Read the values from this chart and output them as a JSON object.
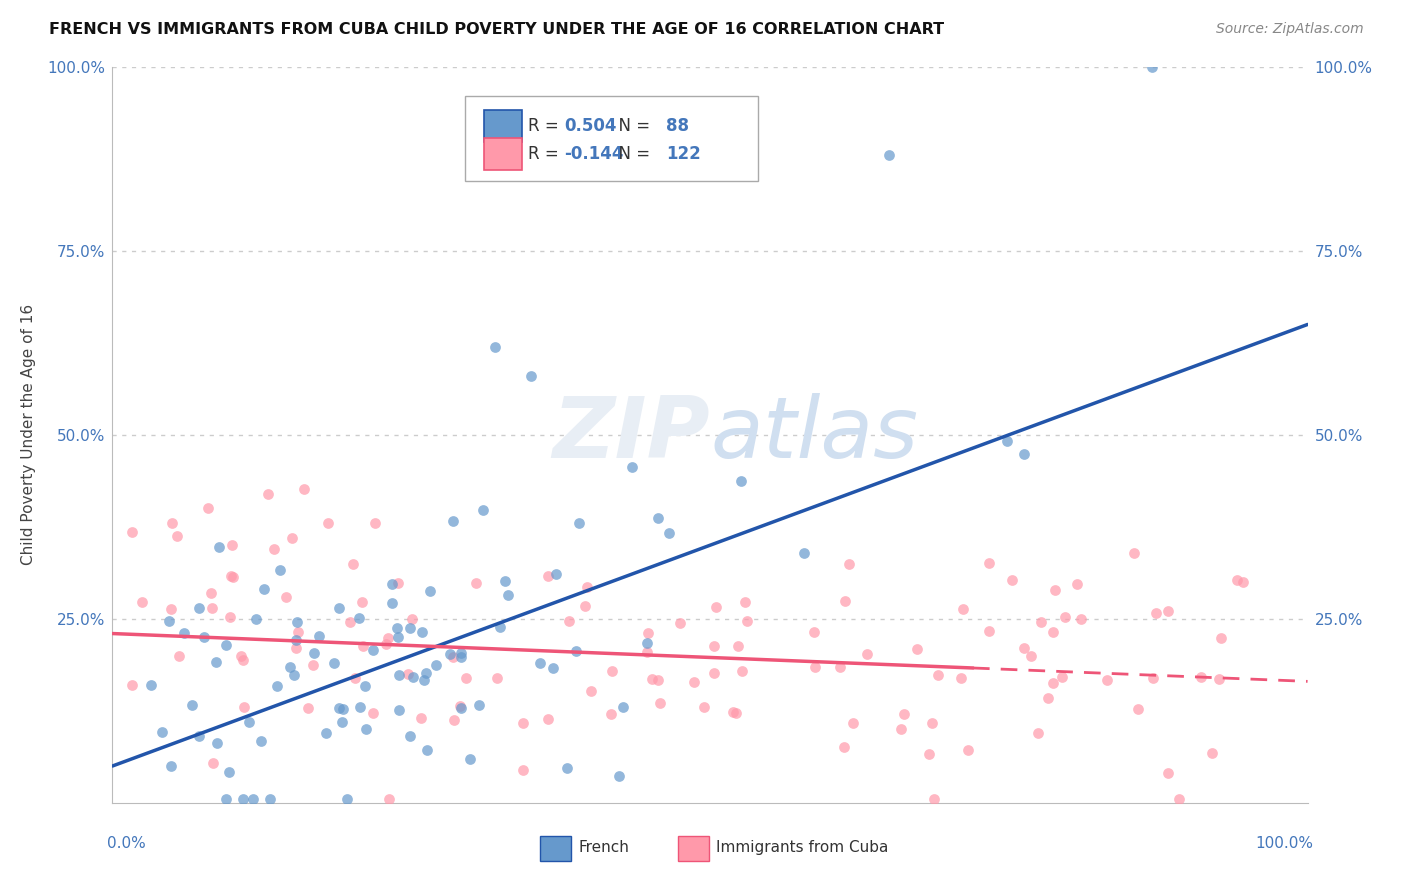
{
  "title": "FRENCH VS IMMIGRANTS FROM CUBA CHILD POVERTY UNDER THE AGE OF 16 CORRELATION CHART",
  "source": "Source: ZipAtlas.com",
  "ylabel": "Child Poverty Under the Age of 16",
  "french_R": 0.504,
  "french_N": 88,
  "cuba_R": -0.144,
  "cuba_N": 122,
  "french_color": "#6699CC",
  "cuba_color": "#FF99AA",
  "french_line_color": "#2255AA",
  "cuba_line_color": "#EE5577",
  "tick_color": "#4477BB",
  "background_color": "#FFFFFF",
  "grid_color": "#CCCCCC",
  "xlim": [
    0,
    1
  ],
  "ylim": [
    0,
    1
  ],
  "french_seed": 10,
  "cuba_seed": 20
}
